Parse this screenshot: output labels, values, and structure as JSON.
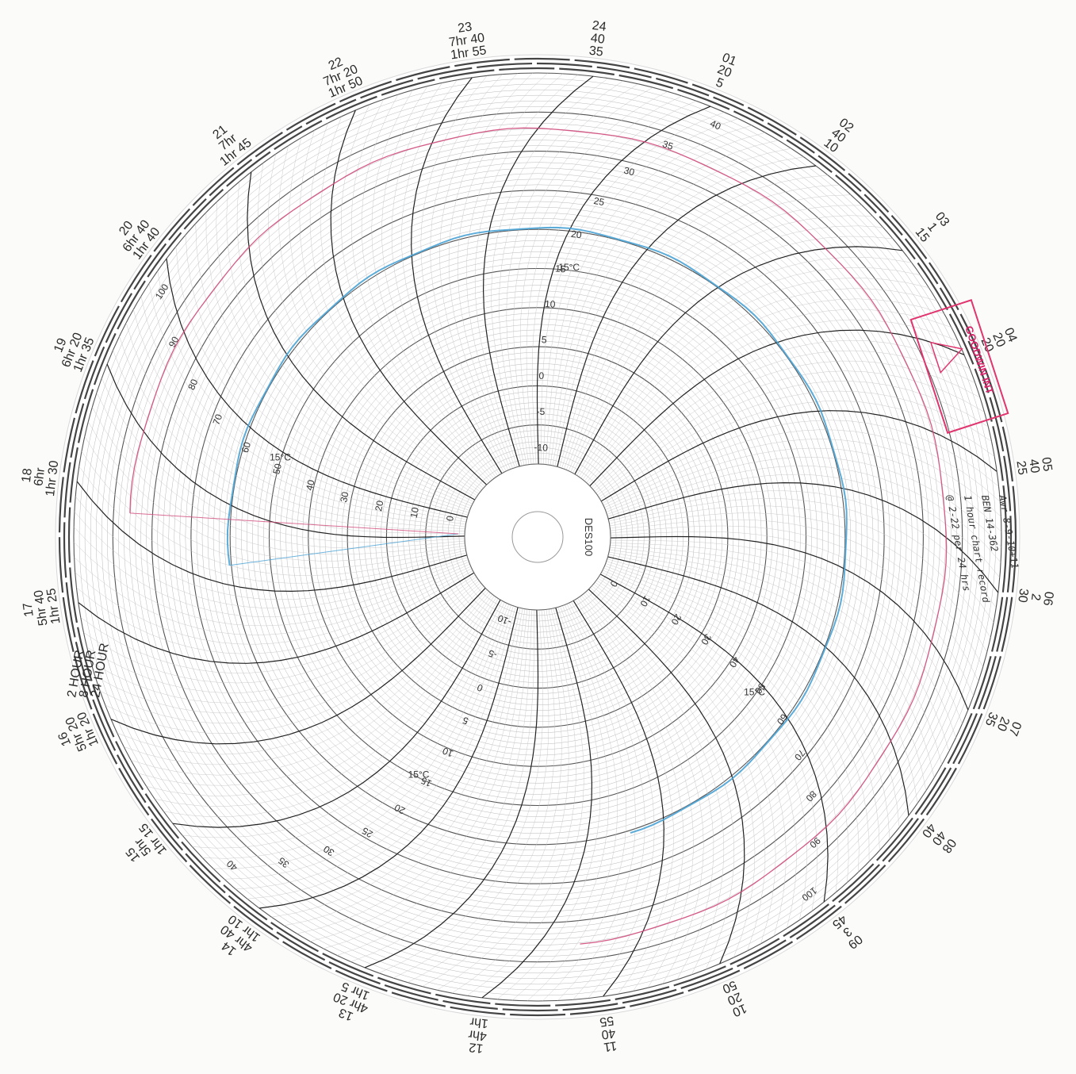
{
  "chart_data": {
    "type": "polar-circular-recorder-chart",
    "title": "",
    "model": "DES100",
    "divisions": 24,
    "time_label_rows": [
      {
        "name": "24 HOUR",
        "labels": [
          "24",
          "01",
          "02",
          "03",
          "04",
          "05",
          "06",
          "07",
          "08",
          "09",
          "10",
          "11",
          "12",
          "13",
          "14",
          "15",
          "16",
          "17",
          "18",
          "19",
          "20",
          "21",
          "22",
          "23"
        ]
      },
      {
        "name": "8 HOUR",
        "labels": [
          "40",
          "20",
          "40",
          "1",
          "20",
          "40",
          "2",
          "20",
          "40",
          "3",
          "20",
          "40",
          "4hr",
          "4hr 20",
          "4hr 40",
          "5hr",
          "5hr 20",
          "5hr 40",
          "6hr",
          "6hr 20",
          "6hr 40",
          "7hr",
          "7hr 20",
          "7hr 40"
        ]
      },
      {
        "name": "2 HOUR",
        "labels": [
          "35",
          "5",
          "10",
          "15",
          "20",
          "25",
          "30",
          "35",
          "40",
          "45",
          "50",
          "55",
          "1hr",
          "1hr 5",
          "1hr 10",
          "1hr 15",
          "1hr 20",
          "1hr 25",
          "1hr 30",
          "1hr 35",
          "1hr 40",
          "1hr 45",
          "1hr 50",
          "1hr 55"
        ]
      }
    ],
    "rh_scale_percent": [
      0,
      10,
      20,
      30,
      40,
      50,
      60,
      70,
      80,
      90,
      100
    ],
    "temp_scale_c": [
      -10,
      -5,
      0,
      5,
      10,
      15,
      20,
      25,
      30,
      35,
      40
    ],
    "temp_unit_label": "15°C",
    "legend_rows": [
      "2 HOUR",
      "8 HOUR",
      "24 HOUR"
    ],
    "series": [
      {
        "color": "#4aa3d6",
        "values": "temperature trace ≈ 21 °C, shown from about 02:00 through 19:00"
      },
      {
        "color": "#d24a7c",
        "values": "humidity trace ≈ 85 %RH, shown from about 02:00 through 20:00"
      }
    ],
    "stamp": {
      "text": "GOODWIN INT",
      "color": "#e0356f"
    },
    "handwritten_notes": [
      "Awr 8-9-10+11",
      "BEN 14-362",
      "1 hour chart record",
      "@ 2-22 per 24 hrs"
    ]
  }
}
